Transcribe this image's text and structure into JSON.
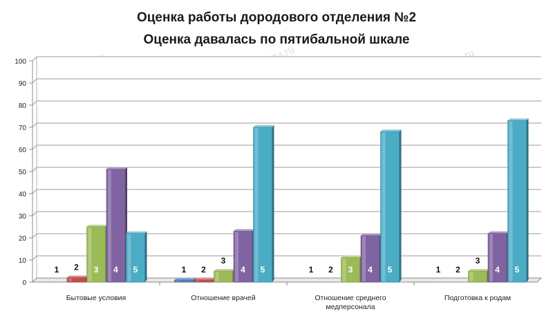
{
  "chart_data": {
    "type": "bar",
    "title": "Оценка работы дородового отделения №2",
    "subtitle": "Оценка давалась по пятибальной шкале",
    "categories": [
      [
        "Бытовые условия"
      ],
      [
        "Отношение врачей"
      ],
      [
        "Отношение среднего",
        "медперсонала"
      ],
      [
        "Подготовка к родам"
      ]
    ],
    "series": [
      {
        "name": "1",
        "color": "#4f81bd",
        "values": [
          0,
          1,
          0,
          0
        ]
      },
      {
        "name": "2",
        "color": "#c0504d",
        "values": [
          2,
          1,
          0,
          0
        ]
      },
      {
        "name": "3",
        "color": "#9bbb59",
        "values": [
          25,
          5,
          11,
          5
        ]
      },
      {
        "name": "4",
        "color": "#8064a2",
        "values": [
          51,
          23,
          21,
          22
        ]
      },
      {
        "name": "5",
        "color": "#4bacc6",
        "values": [
          22,
          70,
          68,
          73
        ]
      }
    ],
    "ylim": [
      0,
      100
    ],
    "yticks": [
      0,
      10,
      20,
      30,
      40,
      50,
      60,
      70,
      80,
      90,
      100
    ],
    "grid": true,
    "legend": "none",
    "watermark_text": "sibmama.ru"
  }
}
